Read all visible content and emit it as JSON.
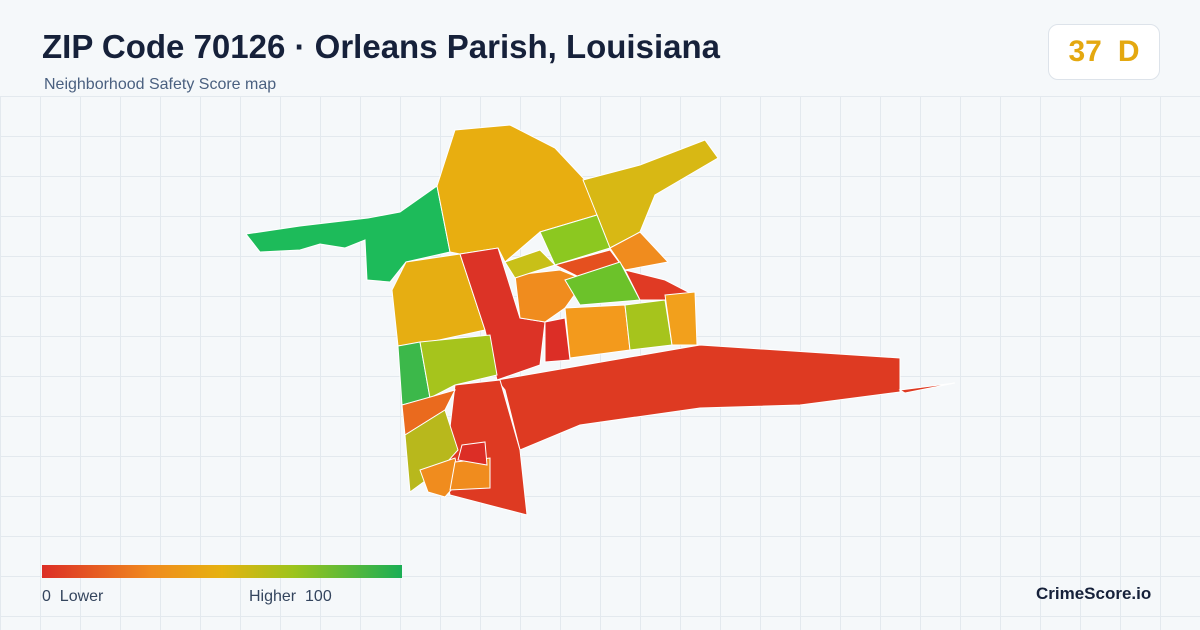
{
  "header": {
    "title": "ZIP Code 70126 · Orleans Parish, Louisiana",
    "subtitle": "Neighborhood Safety Score map",
    "score": 37,
    "grade": "D"
  },
  "legend": {
    "min": 0,
    "min_label": "Lower",
    "max_label": "Higher",
    "max": 100
  },
  "footer": {
    "brand": "CrimeScore.io"
  }
}
